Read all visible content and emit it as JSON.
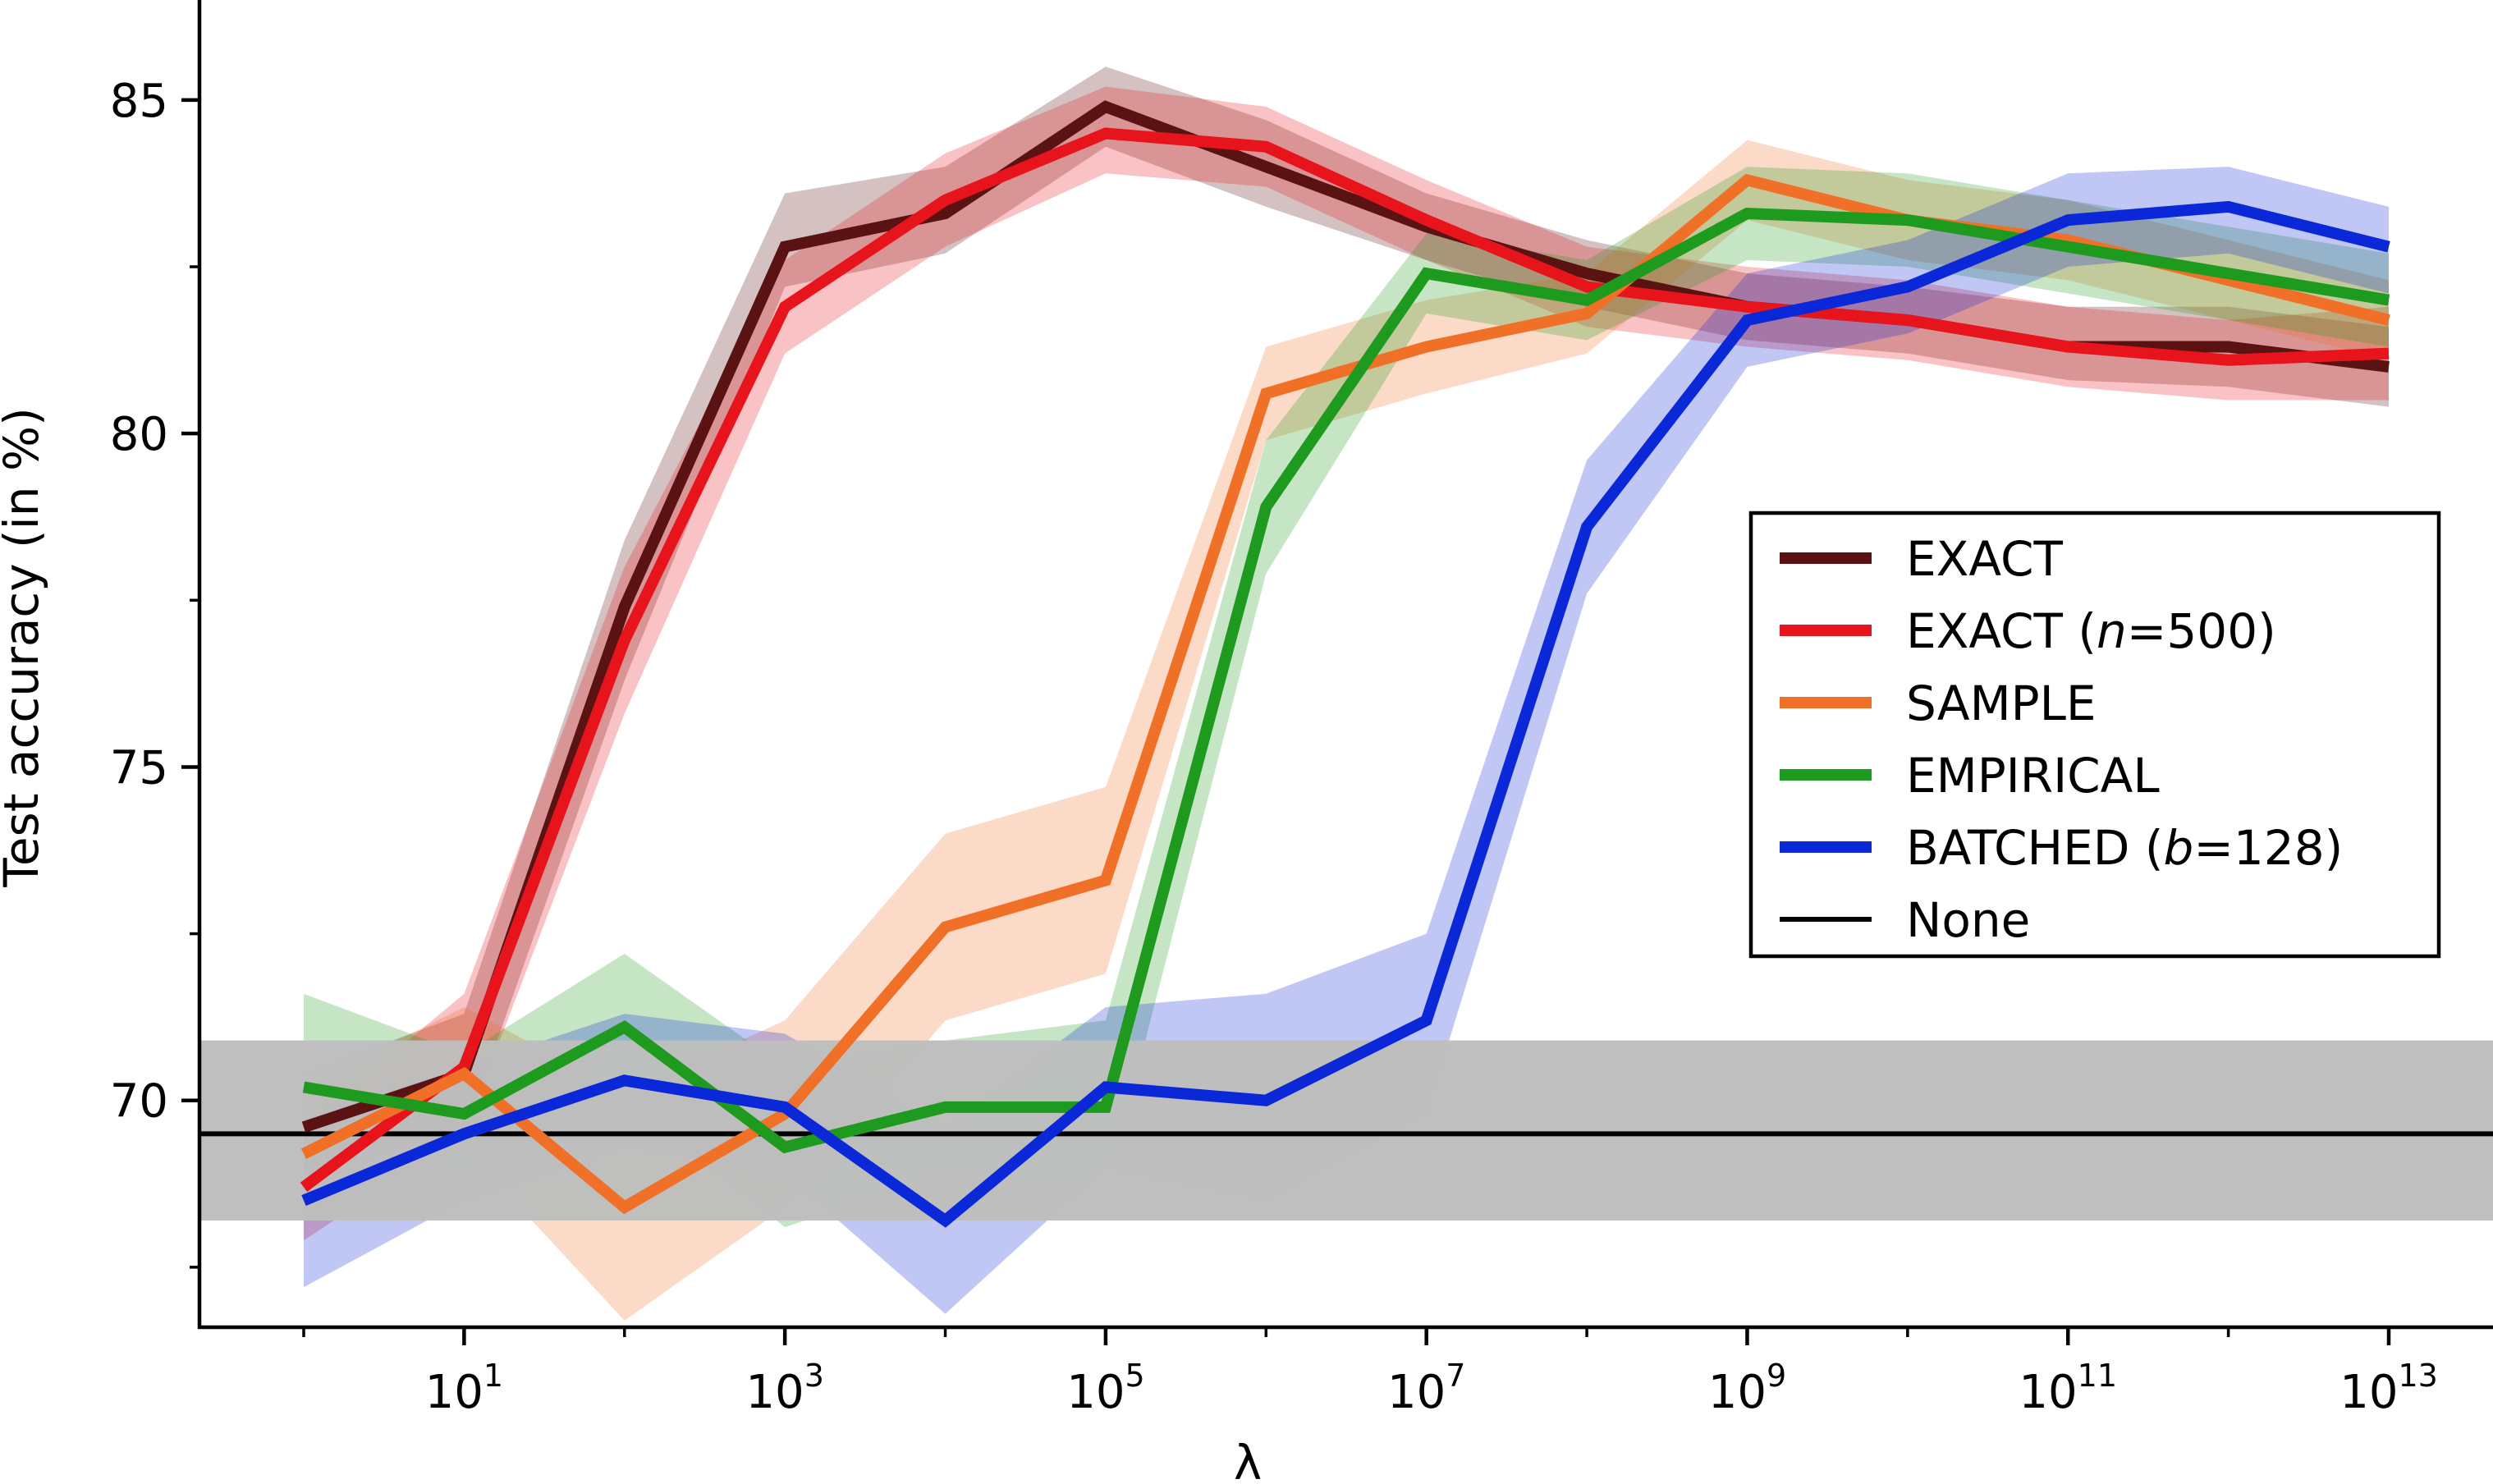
{
  "chart_data": {
    "type": "line",
    "title": "",
    "xlabel": "λ",
    "ylabel": "Test accuracy (in %)",
    "x_scale": "log10",
    "x_exponents": [
      0,
      1,
      2,
      3,
      4,
      5,
      6,
      7,
      8,
      9,
      10,
      11,
      12,
      13
    ],
    "xlim_exponent": [
      -0.65,
      13.65
    ],
    "ylim": [
      66.6,
      86.5
    ],
    "x_ticks": [
      {
        "base": "10",
        "exp": "1",
        "value_exponent": 1
      },
      {
        "base": "10",
        "exp": "3",
        "value_exponent": 3
      },
      {
        "base": "10",
        "exp": "5",
        "value_exponent": 5
      },
      {
        "base": "10",
        "exp": "7",
        "value_exponent": 7
      },
      {
        "base": "10",
        "exp": "9",
        "value_exponent": 9
      },
      {
        "base": "10",
        "exp": "11",
        "value_exponent": 11
      },
      {
        "base": "10",
        "exp": "13",
        "value_exponent": 13
      }
    ],
    "y_ticks": [
      {
        "label": "70",
        "value": 70
      },
      {
        "label": "75",
        "value": 75
      },
      {
        "label": "80",
        "value": 80
      },
      {
        "label": "85",
        "value": 85
      }
    ],
    "y_minor_ticks": [
      67.5,
      72.5,
      77.5,
      82.5
    ],
    "legend_position": "center-right",
    "series": [
      {
        "name": "EXACT",
        "label_parts": [
          {
            "text": "EXACT",
            "italic": false
          }
        ],
        "color": "#5a1212",
        "values": [
          69.6,
          70.4,
          77.4,
          82.8,
          83.3,
          84.9,
          84.0,
          83.1,
          82.4,
          81.9,
          81.7,
          81.3,
          81.3,
          81.0
        ],
        "lower": [
          68.9,
          69.5,
          76.3,
          82.2,
          82.7,
          84.3,
          83.4,
          82.6,
          81.9,
          81.4,
          81.2,
          80.8,
          80.7,
          80.4
        ],
        "upper": [
          70.4,
          71.3,
          78.4,
          83.6,
          84.0,
          85.5,
          84.7,
          83.6,
          82.9,
          82.4,
          82.2,
          81.9,
          81.9,
          81.6
        ]
      },
      {
        "name": "EXACT (n=500)",
        "label_parts": [
          {
            "text": "EXACT (",
            "italic": false
          },
          {
            "text": "n",
            "italic": true
          },
          {
            "text": "=500)",
            "italic": false
          }
        ],
        "color": "#e8141c",
        "values": [
          68.7,
          70.5,
          76.9,
          81.9,
          83.5,
          84.5,
          84.3,
          83.2,
          82.2,
          81.9,
          81.7,
          81.3,
          81.1,
          81.2
        ],
        "lower": [
          67.9,
          69.5,
          75.8,
          81.2,
          82.8,
          83.9,
          83.7,
          82.6,
          81.6,
          81.3,
          81.1,
          80.7,
          80.5,
          80.5
        ],
        "upper": [
          69.6,
          71.6,
          78.0,
          82.6,
          84.2,
          85.2,
          84.9,
          83.8,
          82.8,
          82.5,
          82.3,
          81.9,
          81.7,
          81.9
        ]
      },
      {
        "name": "SAMPLE",
        "label_parts": [
          {
            "text": "SAMPLE",
            "italic": false
          }
        ],
        "color": "#f07028",
        "values": [
          69.2,
          70.4,
          68.4,
          69.8,
          72.6,
          73.3,
          80.6,
          81.3,
          81.8,
          83.8,
          83.2,
          82.9,
          82.3,
          81.7
        ],
        "lower": [
          68.2,
          69.3,
          66.7,
          68.4,
          71.2,
          71.9,
          79.9,
          80.6,
          81.2,
          83.2,
          82.6,
          82.3,
          81.7,
          81.1
        ],
        "upper": [
          70.2,
          71.4,
          70.1,
          71.2,
          74.0,
          74.7,
          81.3,
          82.0,
          82.4,
          84.4,
          83.8,
          83.5,
          82.9,
          82.3
        ]
      },
      {
        "name": "EMPIRICAL",
        "label_parts": [
          {
            "text": "EMPIRICAL",
            "italic": false
          }
        ],
        "color": "#1e9a1e",
        "values": [
          70.2,
          69.8,
          71.1,
          69.3,
          69.9,
          69.9,
          78.9,
          82.4,
          82.0,
          83.3,
          83.2,
          82.8,
          82.4,
          82.0
        ],
        "lower": [
          68.8,
          68.9,
          70.0,
          68.1,
          68.9,
          68.6,
          77.9,
          81.8,
          81.4,
          82.6,
          82.5,
          82.1,
          81.7,
          81.3
        ],
        "upper": [
          71.6,
          70.7,
          72.2,
          70.5,
          70.9,
          71.2,
          79.9,
          83.0,
          82.6,
          84.0,
          83.9,
          83.5,
          83.1,
          82.7
        ]
      },
      {
        "name": "BATCHED (b=128)",
        "label_parts": [
          {
            "text": "BATCHED (",
            "italic": false
          },
          {
            "text": "b",
            "italic": true
          },
          {
            "text": "=128)",
            "italic": false
          }
        ],
        "color": "#0a28d8",
        "values": [
          68.5,
          69.5,
          70.3,
          69.9,
          68.2,
          70.2,
          70.0,
          71.2,
          78.6,
          81.7,
          82.2,
          83.2,
          83.4,
          82.8
        ],
        "lower": [
          67.2,
          68.5,
          69.3,
          68.9,
          66.8,
          69.0,
          68.5,
          69.8,
          77.6,
          81.0,
          81.5,
          82.5,
          82.7,
          82.1
        ],
        "upper": [
          69.8,
          70.5,
          71.3,
          71.0,
          69.6,
          71.4,
          71.6,
          72.5,
          79.6,
          82.4,
          82.9,
          83.9,
          84.0,
          83.4
        ]
      }
    ],
    "baseline": {
      "name": "None",
      "label_parts": [
        {
          "text": "None",
          "italic": false
        }
      ],
      "color": "#000000",
      "value": 69.5,
      "lower": 68.2,
      "upper": 70.9,
      "band_color": "#bebebe"
    }
  }
}
